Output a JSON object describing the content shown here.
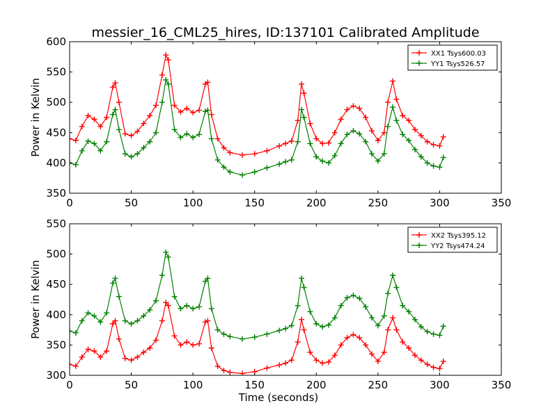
{
  "figure": {
    "title": "messier_16_CML25_hires, ID:137101 Calibrated Amplitude"
  },
  "chart_data": [
    {
      "type": "line",
      "title": "messier_16_CML25_hires, ID:137101 Calibrated Amplitude",
      "xlabel": "",
      "ylabel": "Power in Kelvin",
      "xlim": [
        0,
        350
      ],
      "ylim": [
        350,
        600
      ],
      "xticks": [
        0,
        50,
        100,
        150,
        200,
        250,
        300,
        350
      ],
      "yticks": [
        350,
        400,
        450,
        500,
        550,
        600
      ],
      "grid": false,
      "legend_position": "top-right",
      "marker": "+",
      "x": [
        0,
        5,
        10,
        15,
        20,
        25,
        30,
        35,
        37,
        40,
        45,
        50,
        55,
        60,
        65,
        70,
        75,
        78,
        80,
        85,
        90,
        95,
        100,
        105,
        110,
        112,
        115,
        120,
        125,
        130,
        140,
        150,
        160,
        170,
        175,
        180,
        185,
        188,
        190,
        195,
        200,
        205,
        210,
        215,
        220,
        225,
        230,
        235,
        240,
        245,
        250,
        255,
        258,
        262,
        265,
        270,
        275,
        280,
        285,
        290,
        295,
        300,
        303
      ],
      "series": [
        {
          "name": "XX1 Tsys600.03",
          "color": "#ff0000",
          "values": [
            440,
            437,
            460,
            478,
            472,
            460,
            475,
            525,
            532,
            500,
            448,
            445,
            452,
            465,
            478,
            495,
            545,
            578,
            570,
            495,
            484,
            490,
            483,
            487,
            530,
            533,
            480,
            440,
            425,
            417,
            413,
            415,
            420,
            428,
            432,
            436,
            470,
            530,
            515,
            465,
            440,
            432,
            433,
            450,
            472,
            488,
            494,
            490,
            475,
            453,
            437,
            450,
            500,
            535,
            505,
            478,
            470,
            455,
            445,
            435,
            430,
            428,
            443
          ]
        },
        {
          "name": "YY1 Tsys526.57",
          "color": "#008000",
          "values": [
            400,
            397,
            420,
            436,
            432,
            420,
            435,
            480,
            488,
            455,
            415,
            410,
            415,
            425,
            435,
            450,
            500,
            537,
            530,
            455,
            442,
            448,
            442,
            447,
            485,
            487,
            440,
            405,
            393,
            385,
            380,
            385,
            392,
            398,
            402,
            405,
            435,
            488,
            475,
            432,
            410,
            403,
            400,
            412,
            432,
            447,
            453,
            448,
            435,
            415,
            403,
            415,
            460,
            492,
            470,
            447,
            437,
            422,
            410,
            400,
            395,
            393,
            409
          ]
        }
      ]
    },
    {
      "type": "line",
      "title": "",
      "xlabel": "Time (seconds)",
      "ylabel": "Power in Kelvin",
      "xlim": [
        0,
        350
      ],
      "ylim": [
        300,
        550
      ],
      "xticks": [
        0,
        50,
        100,
        150,
        200,
        250,
        300,
        350
      ],
      "yticks": [
        300,
        350,
        400,
        450,
        500,
        550
      ],
      "grid": false,
      "legend_position": "top-right",
      "marker": "+",
      "x": [
        0,
        5,
        10,
        15,
        20,
        25,
        30,
        35,
        37,
        40,
        45,
        50,
        55,
        60,
        65,
        70,
        75,
        78,
        80,
        85,
        90,
        95,
        100,
        105,
        110,
        112,
        115,
        120,
        125,
        130,
        140,
        150,
        160,
        170,
        175,
        180,
        185,
        188,
        190,
        195,
        200,
        205,
        210,
        215,
        220,
        225,
        230,
        235,
        240,
        245,
        250,
        255,
        258,
        262,
        265,
        270,
        275,
        280,
        285,
        290,
        295,
        300,
        303
      ],
      "series": [
        {
          "name": "XX2 Tsys395.12",
          "color": "#ff0000",
          "values": [
            318,
            315,
            330,
            343,
            340,
            330,
            340,
            385,
            390,
            360,
            328,
            325,
            330,
            338,
            345,
            358,
            390,
            420,
            415,
            365,
            350,
            355,
            350,
            352,
            388,
            390,
            345,
            315,
            308,
            305,
            303,
            306,
            312,
            317,
            320,
            325,
            355,
            392,
            375,
            338,
            325,
            320,
            322,
            333,
            350,
            362,
            367,
            362,
            350,
            335,
            323,
            338,
            375,
            395,
            375,
            355,
            345,
            333,
            325,
            318,
            313,
            311,
            323
          ]
        },
        {
          "name": "YY2 Tsys474.24",
          "color": "#008000",
          "values": [
            373,
            370,
            390,
            403,
            398,
            388,
            403,
            452,
            460,
            430,
            390,
            385,
            390,
            398,
            408,
            423,
            465,
            503,
            495,
            430,
            410,
            415,
            410,
            413,
            455,
            460,
            410,
            375,
            368,
            364,
            360,
            363,
            368,
            374,
            377,
            382,
            415,
            460,
            445,
            405,
            385,
            380,
            383,
            395,
            415,
            428,
            432,
            427,
            413,
            395,
            382,
            398,
            435,
            465,
            445,
            415,
            405,
            392,
            380,
            372,
            368,
            366,
            381
          ]
        }
      ]
    }
  ]
}
